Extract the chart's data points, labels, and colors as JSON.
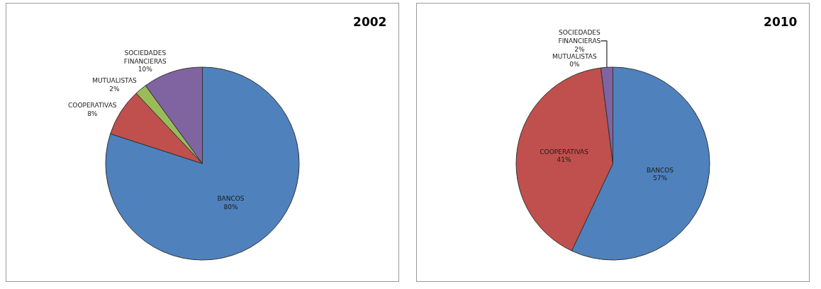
{
  "chart_data": [
    {
      "type": "pie",
      "title": "2002",
      "categories": [
        "BANCOS",
        "COOPERATIVAS",
        "MUTUALISTAS",
        "SOCIEDADES FINANCIERAS"
      ],
      "values": [
        80,
        8,
        2,
        10
      ],
      "value_labels": [
        "80%",
        "8%",
        "2%",
        "10%"
      ],
      "colors": [
        "#4f81bd",
        "#c0504d",
        "#9bbb59",
        "#8064a2"
      ],
      "legend": false
    },
    {
      "type": "pie",
      "title": "2010",
      "categories": [
        "BANCOS",
        "COOPERATIVAS",
        "MUTUALISTAS",
        "SOCIEDADES FINANCIERAS"
      ],
      "values": [
        57,
        41,
        0,
        2
      ],
      "value_labels": [
        "57%",
        "41%",
        "0%",
        "2%"
      ],
      "colors": [
        "#4f81bd",
        "#c0504d",
        "#9bbb59",
        "#8064a2"
      ],
      "legend": false
    }
  ]
}
